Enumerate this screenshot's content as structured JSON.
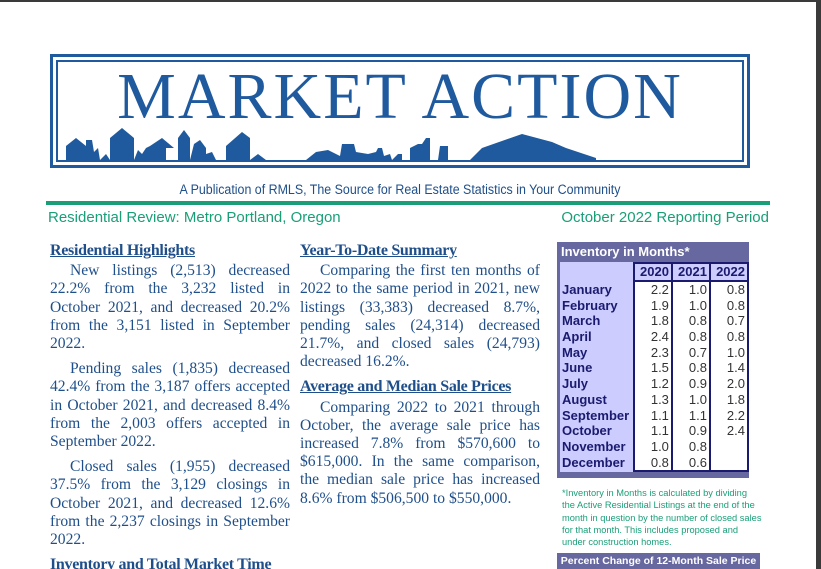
{
  "header": {
    "logo_text": "MARKET ACTION",
    "publication": "A Publication of RMLS, The Source for Real Estate Statistics in Your Community",
    "region": "Residential Review: Metro Portland, Oregon",
    "period": "October 2022 Reporting Period"
  },
  "colors": {
    "brand_blue": "#1f5a9e",
    "green": "#1a9e78",
    "panel_purple": "#6868a0",
    "panel_lilac": "#ccccff"
  },
  "left_column": {
    "heading": "Residential Highlights",
    "paragraphs": [
      "New listings (2,513) decreased 22.2% from the 3,232 listed in October 2021, and decreased 20.2% from the 3,151 listed in September 2022.",
      "Pending sales (1,835) decreased 42.4% from the 3,187 offers accepted in October 2021, and decreased 8.4% from the 2,003 offers accepted in September 2022.",
      "Closed sales (1,955) decreased 37.5% from the 3,129 closings in October 2021, and decreased 12.6% from the 2,237 closings in September 2022."
    ],
    "next_heading": "Inventory and Total Market Time"
  },
  "middle_column": {
    "ytd_heading": "Year-To-Date Summary",
    "ytd_text": "Comparing the first ten months of 2022 to the same period in 2021, new listings (33,383) decreased 8.7%, pending sales (24,314) decreased 21.7%, and closed sales (24,793) decreased 16.2%.",
    "prices_heading": "Average and Median Sale Prices",
    "prices_text": "Comparing 2022 to 2021 through October, the average sale price has increased 7.8% from $570,600 to $615,000. In the same comparison, the median sale price has increased 8.6% from $506,500 to $550,000."
  },
  "inventory": {
    "title": "Inventory in Months*",
    "years": [
      "2020",
      "2021",
      "2022"
    ],
    "rows": [
      {
        "month": "January",
        "v": [
          "2.2",
          "1.0",
          "0.8"
        ]
      },
      {
        "month": "February",
        "v": [
          "1.9",
          "1.0",
          "0.8"
        ]
      },
      {
        "month": "March",
        "v": [
          "1.8",
          "0.8",
          "0.7"
        ]
      },
      {
        "month": "April",
        "v": [
          "2.4",
          "0.8",
          "0.8"
        ]
      },
      {
        "month": "May",
        "v": [
          "2.3",
          "0.7",
          "1.0"
        ]
      },
      {
        "month": "June",
        "v": [
          "1.5",
          "0.8",
          "1.4"
        ]
      },
      {
        "month": "July",
        "v": [
          "1.2",
          "0.9",
          "2.0"
        ]
      },
      {
        "month": "August",
        "v": [
          "1.3",
          "1.0",
          "1.8"
        ]
      },
      {
        "month": "September",
        "v": [
          "1.1",
          "1.1",
          "2.2"
        ]
      },
      {
        "month": "October",
        "v": [
          "1.1",
          "0.9",
          "2.4"
        ]
      },
      {
        "month": "November",
        "v": [
          "1.0",
          "0.8",
          ""
        ]
      },
      {
        "month": "December",
        "v": [
          "0.8",
          "0.6",
          ""
        ]
      }
    ],
    "note": "*Inventory in Months is calculated by dividing the Active Residential Listings at the end of the month in question by the number of closed sales for that month. This includes proposed and under construction homes."
  },
  "next_panel_title": "Percent Change of 12-Month Sale Price"
}
